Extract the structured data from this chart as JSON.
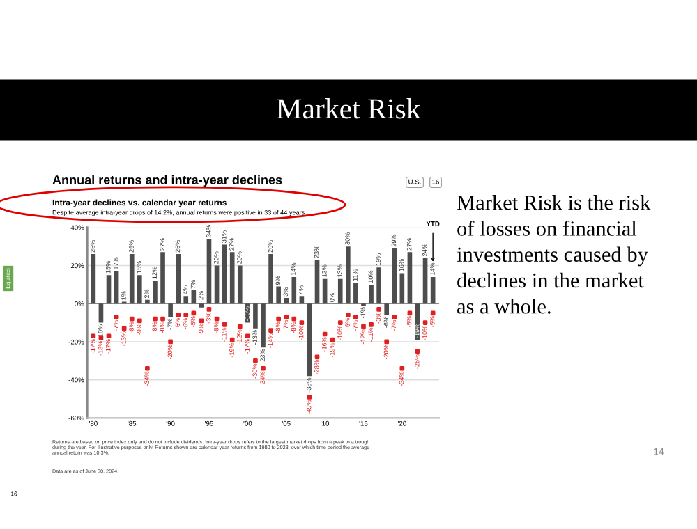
{
  "chart_data": {
    "type": "bar",
    "title": "Annual returns and intra-year declines",
    "subtitle": "Intra-year declines vs. calendar year returns",
    "categories": [
      "'80",
      null,
      null,
      null,
      null,
      "'85",
      null,
      null,
      null,
      null,
      "'90",
      null,
      null,
      null,
      null,
      "'95",
      null,
      null,
      null,
      null,
      "'00",
      null,
      null,
      null,
      null,
      "'05",
      null,
      null,
      null,
      null,
      "'10",
      null,
      null,
      null,
      null,
      "'15",
      null,
      null,
      null,
      null,
      "'20",
      null,
      null,
      null,
      null
    ],
    "series": [
      {
        "color": "#4d4d4d",
        "values": [
          26,
          -10,
          15,
          17,
          1,
          26,
          15,
          2,
          12,
          27,
          -7,
          26,
          4,
          7,
          -2,
          34,
          20,
          31,
          27,
          20,
          -10,
          -13,
          -23,
          26,
          9,
          3,
          14,
          4,
          -38,
          23,
          13,
          0,
          13,
          30,
          11,
          -1,
          10,
          19,
          -6,
          29,
          16,
          27,
          -19,
          24,
          14
        ],
        "value_labels": [
          "26%",
          "-10%",
          "15%",
          "17%",
          "1%",
          "26%",
          "15%",
          "2%",
          "12%",
          "27%",
          "-7%",
          "26%",
          "4%",
          "7%",
          "-2%",
          "34%",
          "20%",
          "31%",
          "27%",
          "20%",
          "-10%",
          "-13%",
          "-23%",
          "26%",
          "9%",
          "3%",
          "14%",
          "4%",
          "-38%",
          "23%",
          "13%",
          "0%",
          "13%",
          "30%",
          "11%",
          "-1%",
          "10%",
          "19%",
          "-6%",
          "29%",
          "16%",
          "27%",
          "-19%",
          "24%",
          "14%"
        ]
      },
      {
        "type": "scatter",
        "color": "#e02020",
        "values": [
          -17,
          -18,
          -17,
          -7,
          -13,
          -8,
          -9,
          -34,
          -8,
          -8,
          -20,
          -6,
          -6,
          -5,
          -9,
          -3,
          -8,
          -11,
          -19,
          -12,
          -17,
          -30,
          -34,
          -14,
          -8,
          -7,
          -8,
          -10,
          -49,
          -28,
          -16,
          -19,
          -10,
          -6,
          -7,
          -12,
          -11,
          -3,
          -20,
          -7,
          -34,
          -5,
          -25,
          -10,
          -5
        ],
        "value_labels": [
          "-17%",
          "-18%",
          "-17%",
          "-7%",
          "-13%",
          "-8%",
          "-9%",
          "-34%",
          "-8%",
          "-8%",
          "-20%",
          "-6%",
          "-6%",
          "-5%",
          "-9%",
          "-3%",
          "-8%",
          "-11%",
          "-19%",
          "-12%",
          "-17%",
          "-30%",
          "-34%",
          "-14%",
          "-8%",
          "-7%",
          "-8%",
          "-10%",
          "-49%",
          "-28%",
          "-16%",
          "-19%",
          "-10%",
          "-6%",
          "-7%",
          "-12%",
          "-11%",
          "-3%",
          "-20%",
          "-7%",
          "-34%",
          "-5%",
          "-25%",
          "-10%",
          "-5%"
        ]
      }
    ],
    "ylim": [
      -60,
      40
    ],
    "yticks": [
      {
        "value": -60,
        "label": "-60%"
      },
      {
        "value": -40,
        "label": "-40%"
      },
      {
        "value": -20,
        "label": "-20%"
      },
      {
        "value": 0,
        "label": "0%"
      },
      {
        "value": 20,
        "label": "20%"
      },
      {
        "value": 40,
        "label": "40%"
      }
    ],
    "grid": "y",
    "marker": "square",
    "annotations": [
      "Market Risk",
      "Market Risk is the risk\nof losses on financial\ninvestments caused by\ndeclines in the market\nas a whole.",
      "Despite average intra-year drops of 14.2%, annual returns were positive in 33 of 44 years",
      "Returns are based on price index only and do not include dividends. Intra-year drops refers to the largest market drops from a peak to a trough\nduring the year. For illustrative purposes only. Returns shown are calendar year returns from 1980 to 2023, over which time period the average\nannual return was 10.3%.",
      "Data are as of June 30, 2024.",
      "YTD",
      "U.S.",
      "16",
      "Equities",
      "14",
      "16"
    ]
  }
}
